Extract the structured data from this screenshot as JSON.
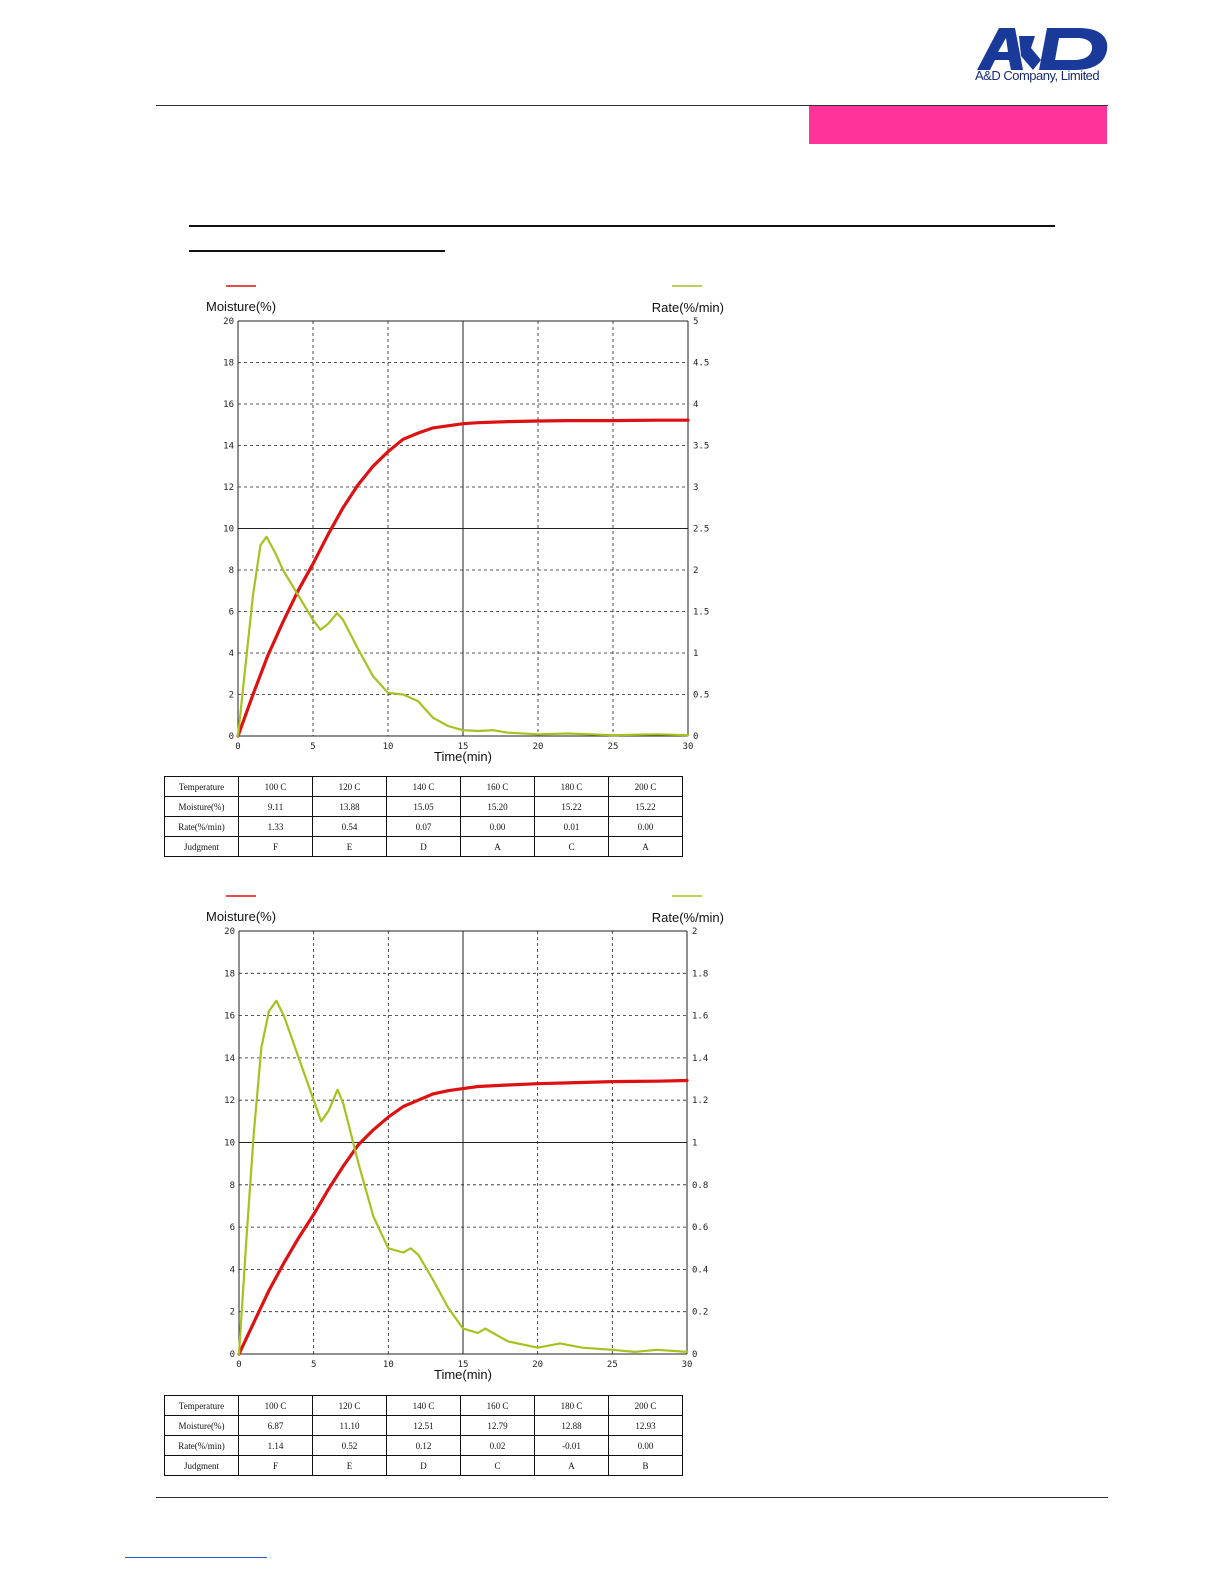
{
  "header": {
    "logo_text": "A&D Company, Limited",
    "logo_mark": "A&D",
    "banner_color": "#ff3399",
    "brand_color": "#1a3a9a"
  },
  "colors": {
    "moisture": "#dd1111",
    "rate": "#a8c020"
  },
  "charts": [
    {
      "left_axis_title": "Moisture(%)",
      "right_axis_title": "Rate(%/min)",
      "x_axis_title": "Time(min)",
      "table": {
        "headers": [
          "Temperature",
          "Moisture(%)",
          "Rate(%/min)",
          "Judgment"
        ],
        "columns": [
          [
            "100 C",
            "9.11",
            "1.33",
            "F"
          ],
          [
            "120 C",
            "13.88",
            "0.54",
            "E"
          ],
          [
            "140 C",
            "15.05",
            "0.07",
            "D"
          ],
          [
            "160 C",
            "15.20",
            "0.00",
            "A"
          ],
          [
            "180 C",
            "15.22",
            "0.01",
            "C"
          ],
          [
            "200 C",
            "15.22",
            "0.00",
            "A"
          ]
        ]
      }
    },
    {
      "left_axis_title": "Moisture(%)",
      "right_axis_title": "Rate(%/min)",
      "x_axis_title": "Time(min)",
      "table": {
        "headers": [
          "Temperature",
          "Moisture(%)",
          "Rate(%/min)",
          "Judgment"
        ],
        "columns": [
          [
            "100 C",
            "6.87",
            "1.14",
            "F"
          ],
          [
            "120 C",
            "11.10",
            "0.52",
            "E"
          ],
          [
            "140 C",
            "12.51",
            "0.12",
            "D"
          ],
          [
            "160 C",
            "12.79",
            "0.02",
            "C"
          ],
          [
            "180 C",
            "12.88",
            "-0.01",
            "A"
          ],
          [
            "200 C",
            "12.93",
            "0.00",
            "B"
          ]
        ]
      }
    }
  ],
  "chart_data": [
    {
      "type": "line",
      "xlabel": "Time(min)",
      "ylabel": "Moisture(%)",
      "y2label": "Rate(%/min)",
      "xlim": [
        0,
        30
      ],
      "ylim": [
        0,
        20
      ],
      "y2lim": [
        0,
        5
      ],
      "xticks": [
        0,
        5,
        10,
        15,
        20,
        25,
        30
      ],
      "yticks": [
        0,
        2,
        4,
        6,
        8,
        10,
        12,
        14,
        16,
        18,
        20
      ],
      "y2ticks": [
        "0",
        "0.5",
        "1",
        "1.5",
        "2",
        "2.5",
        "3",
        "3.5",
        "4",
        "4.5",
        "5"
      ],
      "grid": true,
      "series": [
        {
          "axis": "left",
          "color": "#dd1111",
          "x": [
            0,
            1,
            2,
            3,
            4,
            5,
            6,
            7,
            8,
            9,
            10,
            11,
            12,
            13,
            14,
            15,
            16,
            18,
            20,
            22,
            25,
            28,
            30
          ],
          "y": [
            0,
            2.0,
            3.9,
            5.5,
            7.0,
            8.3,
            9.7,
            11.0,
            12.1,
            13.0,
            13.7,
            14.3,
            14.6,
            14.85,
            14.95,
            15.05,
            15.1,
            15.15,
            15.18,
            15.2,
            15.2,
            15.22,
            15.22
          ]
        },
        {
          "axis": "right",
          "color": "#a8c020",
          "x": [
            0,
            0.5,
            1,
            1.5,
            1.9,
            2.5,
            3,
            4,
            5,
            5.5,
            6,
            6.6,
            7,
            8,
            9,
            10,
            11,
            12,
            13,
            14,
            15,
            16,
            17,
            18,
            20,
            22,
            25,
            28,
            30
          ],
          "y": [
            0,
            0.85,
            1.7,
            2.3,
            2.4,
            2.2,
            2.0,
            1.7,
            1.4,
            1.28,
            1.35,
            1.48,
            1.4,
            1.05,
            0.72,
            0.52,
            0.5,
            0.42,
            0.22,
            0.12,
            0.07,
            0.06,
            0.07,
            0.04,
            0.02,
            0.03,
            0.01,
            0.02,
            0.01
          ]
        }
      ]
    },
    {
      "type": "line",
      "xlabel": "Time(min)",
      "ylabel": "Moisture(%)",
      "y2label": "Rate(%/min)",
      "xlim": [
        0,
        30
      ],
      "ylim": [
        0,
        20
      ],
      "y2lim": [
        0,
        2
      ],
      "xticks": [
        0,
        5,
        10,
        15,
        20,
        25,
        30
      ],
      "yticks": [
        0,
        2,
        4,
        6,
        8,
        10,
        12,
        14,
        16,
        18,
        20
      ],
      "y2ticks": [
        "0",
        "0.2",
        "0.4",
        "0.6",
        "0.8",
        "1",
        "1.2",
        "1.4",
        "1.6",
        "1.8",
        "2"
      ],
      "grid": true,
      "series": [
        {
          "axis": "left",
          "color": "#dd1111",
          "x": [
            0,
            1,
            2,
            3,
            4,
            5,
            6,
            7,
            8,
            9,
            10,
            11,
            12,
            13,
            14,
            15,
            16,
            18,
            20,
            22,
            25,
            28,
            30
          ],
          "y": [
            0,
            1.5,
            3.0,
            4.3,
            5.5,
            6.6,
            7.8,
            8.9,
            9.9,
            10.6,
            11.2,
            11.7,
            12.0,
            12.3,
            12.45,
            12.55,
            12.65,
            12.72,
            12.78,
            12.82,
            12.88,
            12.9,
            12.93
          ]
        },
        {
          "axis": "right",
          "color": "#a8c020",
          "x": [
            0,
            0.5,
            1,
            1.5,
            2,
            2.5,
            3,
            4,
            5,
            5.5,
            6,
            6.6,
            7,
            8,
            9,
            10,
            11,
            11.5,
            12,
            13,
            14,
            15,
            16,
            16.5,
            17,
            18,
            20,
            21.5,
            23,
            25,
            26.5,
            28,
            30
          ],
          "y": [
            0,
            0.55,
            1.05,
            1.45,
            1.62,
            1.67,
            1.6,
            1.4,
            1.2,
            1.1,
            1.15,
            1.25,
            1.18,
            0.9,
            0.65,
            0.5,
            0.48,
            0.5,
            0.47,
            0.35,
            0.22,
            0.12,
            0.1,
            0.12,
            0.1,
            0.06,
            0.03,
            0.05,
            0.03,
            0.02,
            0.01,
            0.02,
            0.01
          ]
        }
      ]
    }
  ]
}
